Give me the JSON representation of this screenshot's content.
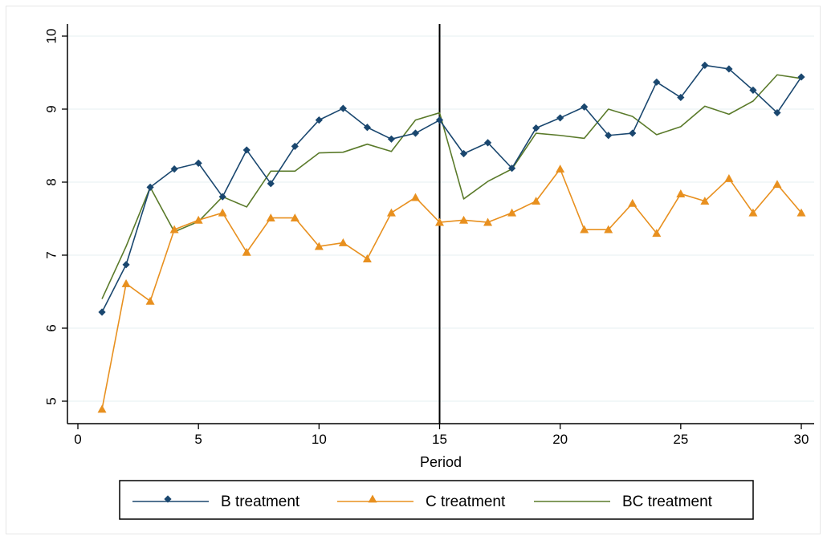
{
  "chart_data": {
    "type": "line",
    "title": "",
    "xlabel": "Period",
    "ylabel": "",
    "xlim": [
      0,
      30
    ],
    "ylim": [
      5,
      10
    ],
    "x_ticks": [
      0,
      5,
      10,
      15,
      20,
      25,
      30
    ],
    "y_ticks": [
      5,
      6,
      7,
      8,
      9,
      10
    ],
    "reference_line_x": 15,
    "grid": "horizontal",
    "legend_position": "bottom",
    "x": [
      1,
      2,
      3,
      4,
      5,
      6,
      7,
      8,
      9,
      10,
      11,
      12,
      13,
      14,
      15,
      16,
      17,
      18,
      19,
      20,
      21,
      22,
      23,
      24,
      25,
      26,
      27,
      28,
      29,
      30
    ],
    "series": [
      {
        "name": "B treatment",
        "color": "#1a476f",
        "marker": "diamond",
        "values": [
          6.22,
          6.87,
          7.93,
          8.18,
          8.26,
          7.8,
          8.44,
          7.98,
          8.49,
          8.85,
          9.01,
          8.75,
          8.59,
          8.67,
          8.85,
          8.39,
          8.54,
          8.19,
          8.74,
          8.88,
          9.03,
          8.64,
          8.67,
          9.37,
          9.16,
          9.6,
          9.55,
          9.26,
          8.95,
          9.44
        ]
      },
      {
        "name": "C treatment",
        "color": "#e8901f",
        "marker": "triangle",
        "values": [
          4.89,
          6.61,
          6.37,
          7.35,
          7.48,
          7.58,
          7.04,
          7.51,
          7.51,
          7.12,
          7.17,
          6.95,
          7.58,
          7.79,
          7.45,
          7.48,
          7.45,
          7.58,
          7.74,
          8.18,
          7.35,
          7.35,
          7.71,
          7.3,
          7.84,
          7.74,
          8.05,
          7.58,
          7.97,
          7.58
        ]
      },
      {
        "name": "BC treatment",
        "color": "#5a7a2a",
        "marker": "none",
        "values": [
          6.4,
          7.12,
          7.93,
          7.32,
          7.46,
          7.8,
          7.66,
          8.15,
          8.15,
          8.4,
          8.41,
          8.52,
          8.42,
          8.85,
          8.95,
          7.77,
          8.01,
          8.18,
          8.67,
          8.64,
          8.6,
          9.0,
          8.9,
          8.65,
          8.76,
          9.04,
          8.93,
          9.11,
          9.47,
          9.42
        ]
      }
    ]
  }
}
